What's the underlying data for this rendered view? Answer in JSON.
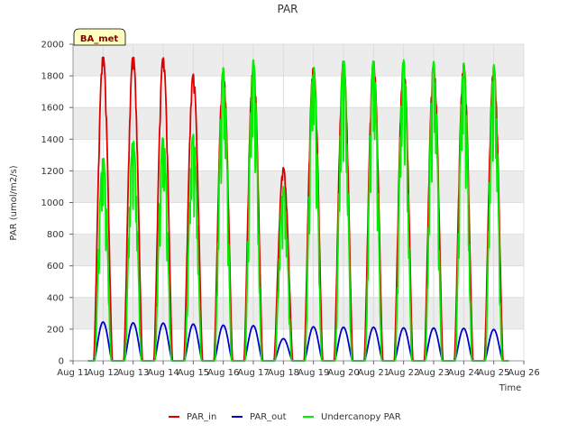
{
  "chart_data": {
    "type": "line",
    "title": "PAR",
    "xlabel": "Time",
    "ylabel": "PAR (umol/m2/s)",
    "site_label": "BA_met",
    "x_ticks": [
      "Aug 11",
      "Aug 12",
      "Aug 13",
      "Aug 14",
      "Aug 15",
      "Aug 16",
      "Aug 17",
      "Aug 18",
      "Aug 19",
      "Aug 20",
      "Aug 21",
      "Aug 22",
      "Aug 23",
      "Aug 24",
      "Aug 25",
      "Aug 26"
    ],
    "y_ticks": [
      0,
      200,
      400,
      600,
      800,
      1000,
      1200,
      1400,
      1600,
      1800,
      2000
    ],
    "xlim": [
      11,
      26
    ],
    "ylim": [
      0,
      2000
    ],
    "x_units": "day of August",
    "series": [
      {
        "name": "PAR_in",
        "color": "#dd0000",
        "days": [
          12,
          13,
          14,
          15,
          16,
          17,
          18,
          19,
          20,
          21,
          22,
          23,
          24,
          25
        ],
        "peaks": [
          1930,
          1930,
          1920,
          1810,
          1830,
          1880,
          1220,
          1860,
          1890,
          1890,
          1880,
          1870,
          1870,
          1860
        ]
      },
      {
        "name": "PAR_out",
        "color": "#0000cc",
        "days": [
          12,
          13,
          14,
          15,
          16,
          17,
          18,
          19,
          20,
          21,
          22,
          23,
          24,
          25
        ],
        "peaks": [
          245,
          240,
          238,
          232,
          225,
          222,
          140,
          215,
          212,
          212,
          208,
          207,
          205,
          198
        ]
      },
      {
        "name": "Undercanopy PAR",
        "color": "#00ee00",
        "days": [
          12,
          13,
          14,
          15,
          16,
          17,
          18,
          19,
          20,
          21,
          22,
          23,
          24,
          25
        ],
        "peaks": [
          1290,
          1400,
          1420,
          1430,
          1850,
          1900,
          1100,
          1870,
          1910,
          1910,
          1900,
          1890,
          1880,
          1870
        ]
      }
    ]
  }
}
